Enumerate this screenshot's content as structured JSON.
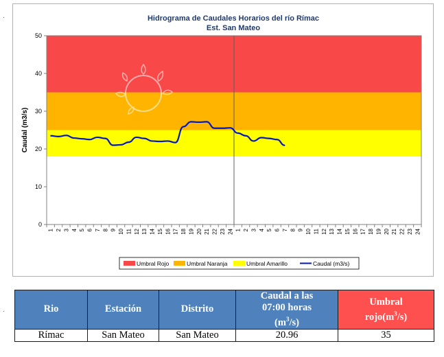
{
  "chart_data": {
    "type": "line",
    "title": "Hidrograma de Caudales Horarios del río Rímac",
    "subtitle": "Est. San Mateo",
    "ylabel": "Caudal  (m3/s)",
    "ylim": [
      0,
      50
    ],
    "yticks": [
      0,
      10,
      20,
      30,
      40,
      50
    ],
    "xlabels": [
      "1",
      "2",
      "3",
      "4",
      "5",
      "6",
      "7",
      "8",
      "9",
      "10",
      "11",
      "12",
      "13",
      "14",
      "15",
      "16",
      "17",
      "18",
      "19",
      "20",
      "21",
      "22",
      "23",
      "24",
      "1",
      "2",
      "3",
      "4",
      "5",
      "6",
      "7",
      "8",
      "9",
      "10",
      "11",
      "12",
      "13",
      "14",
      "15",
      "16",
      "17",
      "18",
      "19",
      "20",
      "21",
      "22",
      "23",
      "24"
    ],
    "day_divider_after": 24,
    "bands": [
      {
        "name": "Umbral Rojo",
        "from": 35,
        "to": 50,
        "color": "#f84848"
      },
      {
        "name": "Umbral Naranja",
        "from": 25,
        "to": 35,
        "color": "#ffb400"
      },
      {
        "name": "Umbral Amarillo",
        "from": 18,
        "to": 25,
        "color": "#ffff00"
      }
    ],
    "series": [
      {
        "name": "Caudal (m3/s)",
        "color": "#0018c0",
        "values": [
          23.5,
          23.3,
          23.6,
          22.9,
          22.7,
          22.5,
          23.1,
          22.8,
          21.0,
          21.1,
          21.8,
          23.1,
          22.8,
          22.1,
          22.0,
          22.1,
          21.7,
          25.9,
          27.2,
          27.1,
          27.2,
          25.5,
          25.5,
          25.6,
          24.2,
          23.5,
          22.1,
          23.0,
          22.8,
          22.5,
          20.96
        ]
      }
    ],
    "legend": [
      "Umbral Rojo",
      "Umbral Naranja",
      "Umbral Amarillo",
      "Caudal (m3/s)"
    ],
    "legend_position": "bottom"
  },
  "table": {
    "headers": [
      "Rio",
      "Estación",
      "Distrito",
      "Caudal a las 07:00 horas (m3/s)",
      "Umbral rojo(m3/s)"
    ],
    "header_caudal_line1": "Caudal a las",
    "header_caudal_line2": "07:00 horas",
    "header_caudal_unit_pre": "(m",
    "header_caudal_unit_sup": "3",
    "header_caudal_unit_post": "/s)",
    "header_umbral_line1": "Umbral",
    "header_umbral_unit_pre": "rojo(m",
    "header_umbral_unit_sup": "3",
    "header_umbral_unit_post": "/s)",
    "row": {
      "rio": "Rímac",
      "estacion": "San Mateo",
      "distrito": "San Mateo",
      "caudal": "20.96",
      "umbral": "35"
    }
  },
  "margin_marks": [
    ".",
    "."
  ],
  "colors": {
    "header_blue": "#4f81bd",
    "header_red": "#ff5050"
  }
}
